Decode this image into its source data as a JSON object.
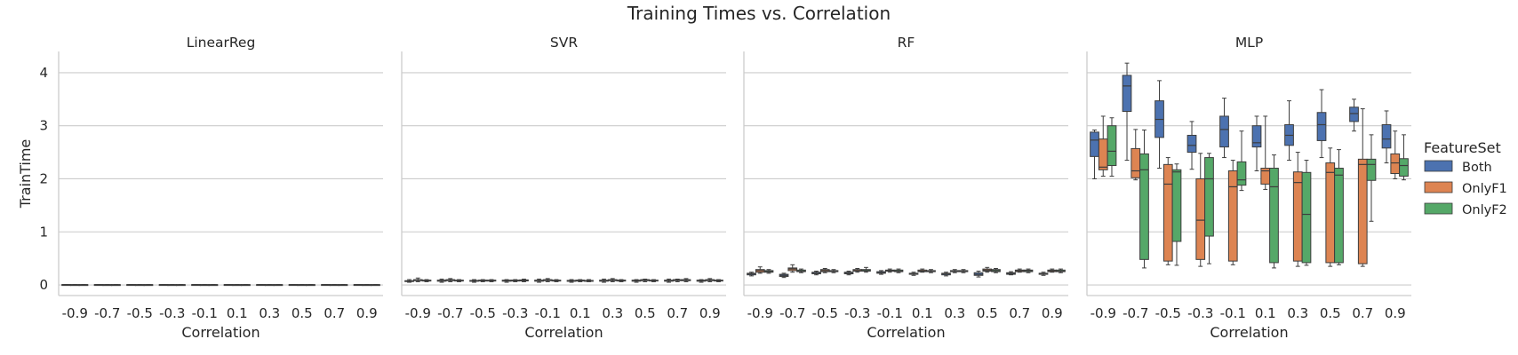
{
  "chart_data": {
    "type": "box",
    "title": "Training Times vs. Correlation",
    "xlabel": "Correlation",
    "ylabel": "TrainTime",
    "ylim": [
      -0.2,
      4.4
    ],
    "yticks": [
      0,
      1,
      2,
      3,
      4
    ],
    "categories": [
      "-0.9",
      "-0.7",
      "-0.5",
      "-0.3",
      "-0.1",
      "0.1",
      "0.3",
      "0.5",
      "0.7",
      "0.9"
    ],
    "legend": {
      "title": "FeatureSet",
      "placement": "right",
      "entries": [
        "Both",
        "OnlyF1",
        "OnlyF2"
      ]
    },
    "colors": {
      "Both": "#4c72b0",
      "OnlyF1": "#dd8452",
      "OnlyF2": "#55a868"
    },
    "grid": "horizontal",
    "note": "each box: [whisker_low, q1, median, q3, whisker_high]",
    "panels": [
      {
        "title": "LinearReg",
        "series": [
          {
            "name": "Both",
            "boxes": [
              [
                0.004,
                0.005,
                0.006,
                0.007,
                0.008
              ],
              [
                0.004,
                0.005,
                0.006,
                0.007,
                0.008
              ],
              [
                0.004,
                0.005,
                0.006,
                0.007,
                0.008
              ],
              [
                0.004,
                0.005,
                0.006,
                0.007,
                0.008
              ],
              [
                0.004,
                0.005,
                0.006,
                0.007,
                0.008
              ],
              [
                0.004,
                0.005,
                0.006,
                0.007,
                0.008
              ],
              [
                0.004,
                0.005,
                0.006,
                0.007,
                0.008
              ],
              [
                0.004,
                0.005,
                0.006,
                0.007,
                0.008
              ],
              [
                0.004,
                0.005,
                0.006,
                0.007,
                0.008
              ],
              [
                0.004,
                0.005,
                0.006,
                0.007,
                0.008
              ]
            ]
          },
          {
            "name": "OnlyF1",
            "boxes": [
              [
                0.003,
                0.004,
                0.005,
                0.006,
                0.007
              ],
              [
                0.003,
                0.004,
                0.005,
                0.006,
                0.007
              ],
              [
                0.003,
                0.004,
                0.005,
                0.006,
                0.007
              ],
              [
                0.003,
                0.004,
                0.005,
                0.006,
                0.007
              ],
              [
                0.003,
                0.004,
                0.005,
                0.006,
                0.007
              ],
              [
                0.003,
                0.004,
                0.005,
                0.006,
                0.007
              ],
              [
                0.003,
                0.004,
                0.005,
                0.006,
                0.007
              ],
              [
                0.003,
                0.004,
                0.005,
                0.006,
                0.007
              ],
              [
                0.003,
                0.004,
                0.005,
                0.006,
                0.007
              ],
              [
                0.003,
                0.004,
                0.005,
                0.006,
                0.007
              ]
            ]
          },
          {
            "name": "OnlyF2",
            "boxes": [
              [
                0.003,
                0.004,
                0.005,
                0.006,
                0.007
              ],
              [
                0.003,
                0.004,
                0.005,
                0.006,
                0.007
              ],
              [
                0.003,
                0.004,
                0.005,
                0.006,
                0.007
              ],
              [
                0.003,
                0.004,
                0.005,
                0.006,
                0.007
              ],
              [
                0.003,
                0.004,
                0.005,
                0.006,
                0.007
              ],
              [
                0.003,
                0.004,
                0.005,
                0.006,
                0.007
              ],
              [
                0.003,
                0.004,
                0.005,
                0.006,
                0.007
              ],
              [
                0.003,
                0.004,
                0.005,
                0.006,
                0.007
              ],
              [
                0.003,
                0.004,
                0.005,
                0.006,
                0.007
              ],
              [
                0.003,
                0.004,
                0.005,
                0.006,
                0.007
              ]
            ]
          }
        ]
      },
      {
        "title": "SVR",
        "series": [
          {
            "name": "Both",
            "boxes": [
              [
                0.05,
                0.07,
                0.075,
                0.08,
                0.1
              ],
              [
                0.05,
                0.07,
                0.08,
                0.09,
                0.11
              ],
              [
                0.05,
                0.07,
                0.08,
                0.085,
                0.1
              ],
              [
                0.05,
                0.07,
                0.08,
                0.09,
                0.1
              ],
              [
                0.05,
                0.07,
                0.08,
                0.09,
                0.11
              ],
              [
                0.05,
                0.07,
                0.08,
                0.085,
                0.1
              ],
              [
                0.05,
                0.07,
                0.08,
                0.09,
                0.11
              ],
              [
                0.05,
                0.07,
                0.08,
                0.09,
                0.1
              ],
              [
                0.05,
                0.07,
                0.08,
                0.09,
                0.11
              ],
              [
                0.05,
                0.07,
                0.08,
                0.09,
                0.1
              ]
            ]
          },
          {
            "name": "OnlyF1",
            "boxes": [
              [
                0.06,
                0.08,
                0.09,
                0.1,
                0.13
              ],
              [
                0.06,
                0.08,
                0.09,
                0.1,
                0.12
              ],
              [
                0.06,
                0.08,
                0.085,
                0.09,
                0.1
              ],
              [
                0.06,
                0.08,
                0.085,
                0.09,
                0.1
              ],
              [
                0.06,
                0.08,
                0.09,
                0.1,
                0.12
              ],
              [
                0.06,
                0.08,
                0.085,
                0.09,
                0.1
              ],
              [
                0.06,
                0.08,
                0.09,
                0.1,
                0.12
              ],
              [
                0.06,
                0.08,
                0.09,
                0.1,
                0.11
              ],
              [
                0.06,
                0.08,
                0.09,
                0.1,
                0.11
              ],
              [
                0.06,
                0.08,
                0.09,
                0.1,
                0.12
              ]
            ]
          },
          {
            "name": "OnlyF2",
            "boxes": [
              [
                0.06,
                0.075,
                0.08,
                0.09,
                0.1
              ],
              [
                0.06,
                0.075,
                0.08,
                0.09,
                0.1
              ],
              [
                0.06,
                0.075,
                0.08,
                0.09,
                0.1
              ],
              [
                0.06,
                0.075,
                0.085,
                0.095,
                0.11
              ],
              [
                0.06,
                0.075,
                0.08,
                0.09,
                0.1
              ],
              [
                0.06,
                0.075,
                0.08,
                0.085,
                0.1
              ],
              [
                0.06,
                0.075,
                0.085,
                0.09,
                0.1
              ],
              [
                0.06,
                0.075,
                0.08,
                0.09,
                0.1
              ],
              [
                0.06,
                0.08,
                0.09,
                0.1,
                0.12
              ],
              [
                0.06,
                0.075,
                0.085,
                0.09,
                0.1
              ]
            ]
          }
        ]
      },
      {
        "title": "RF",
        "series": [
          {
            "name": "Both",
            "boxes": [
              [
                0.17,
                0.19,
                0.21,
                0.22,
                0.24
              ],
              [
                0.14,
                0.16,
                0.18,
                0.2,
                0.22
              ],
              [
                0.19,
                0.21,
                0.22,
                0.24,
                0.26
              ],
              [
                0.19,
                0.21,
                0.23,
                0.24,
                0.26
              ],
              [
                0.2,
                0.22,
                0.23,
                0.25,
                0.27
              ],
              [
                0.18,
                0.2,
                0.21,
                0.22,
                0.24
              ],
              [
                0.17,
                0.19,
                0.21,
                0.22,
                0.24
              ],
              [
                0.15,
                0.18,
                0.2,
                0.23,
                0.26
              ],
              [
                0.19,
                0.2,
                0.22,
                0.23,
                0.25
              ],
              [
                0.18,
                0.2,
                0.21,
                0.22,
                0.24
              ]
            ]
          },
          {
            "name": "OnlyF1",
            "boxes": [
              [
                0.22,
                0.24,
                0.27,
                0.29,
                0.34
              ],
              [
                0.24,
                0.27,
                0.3,
                0.32,
                0.38
              ],
              [
                0.23,
                0.25,
                0.27,
                0.29,
                0.31
              ],
              [
                0.24,
                0.26,
                0.27,
                0.29,
                0.31
              ],
              [
                0.24,
                0.26,
                0.27,
                0.28,
                0.3
              ],
              [
                0.24,
                0.25,
                0.26,
                0.28,
                0.3
              ],
              [
                0.23,
                0.25,
                0.26,
                0.27,
                0.29
              ],
              [
                0.24,
                0.26,
                0.28,
                0.3,
                0.33
              ],
              [
                0.24,
                0.25,
                0.27,
                0.28,
                0.3
              ],
              [
                0.24,
                0.25,
                0.27,
                0.28,
                0.3
              ]
            ]
          },
          {
            "name": "OnlyF2",
            "boxes": [
              [
                0.22,
                0.24,
                0.25,
                0.27,
                0.29
              ],
              [
                0.23,
                0.25,
                0.26,
                0.28,
                0.3
              ],
              [
                0.23,
                0.25,
                0.26,
                0.27,
                0.29
              ],
              [
                0.24,
                0.26,
                0.27,
                0.29,
                0.33
              ],
              [
                0.23,
                0.25,
                0.26,
                0.28,
                0.3
              ],
              [
                0.23,
                0.25,
                0.26,
                0.27,
                0.29
              ],
              [
                0.23,
                0.25,
                0.26,
                0.27,
                0.29
              ],
              [
                0.23,
                0.25,
                0.27,
                0.29,
                0.31
              ],
              [
                0.23,
                0.25,
                0.27,
                0.28,
                0.3
              ],
              [
                0.23,
                0.25,
                0.26,
                0.28,
                0.3
              ]
            ]
          }
        ]
      },
      {
        "title": "MLP",
        "series": [
          {
            "name": "Both",
            "boxes": [
              [
                2.0,
                2.42,
                2.73,
                2.88,
                2.92
              ],
              [
                2.35,
                3.27,
                3.75,
                3.95,
                4.18
              ],
              [
                2.2,
                2.78,
                3.12,
                3.47,
                3.85
              ],
              [
                2.18,
                2.5,
                2.63,
                2.82,
                3.08
              ],
              [
                2.4,
                2.6,
                2.93,
                3.18,
                3.52
              ],
              [
                2.15,
                2.6,
                2.68,
                3.0,
                3.18
              ],
              [
                2.35,
                2.63,
                2.82,
                3.02,
                3.47
              ],
              [
                2.4,
                2.72,
                3.02,
                3.25,
                3.68
              ],
              [
                2.9,
                3.08,
                3.23,
                3.35,
                3.5
              ],
              [
                2.3,
                2.58,
                2.75,
                3.02,
                3.28
              ]
            ]
          },
          {
            "name": "OnlyF1",
            "boxes": [
              [
                2.05,
                2.17,
                2.22,
                2.75,
                3.18
              ],
              [
                1.98,
                2.02,
                2.15,
                2.57,
                2.93
              ],
              [
                0.38,
                0.45,
                1.9,
                2.27,
                2.4
              ],
              [
                0.35,
                0.48,
                1.22,
                2.0,
                2.48
              ],
              [
                0.38,
                0.45,
                1.85,
                2.15,
                2.35
              ],
              [
                1.8,
                1.9,
                2.15,
                2.2,
                3.18
              ],
              [
                0.35,
                0.45,
                1.93,
                2.13,
                2.5
              ],
              [
                0.35,
                0.42,
                2.12,
                2.3,
                2.58
              ],
              [
                0.35,
                0.4,
                2.27,
                2.37,
                3.32
              ],
              [
                2.0,
                2.1,
                2.3,
                2.47,
                2.9
              ]
            ]
          },
          {
            "name": "OnlyF2",
            "boxes": [
              [
                2.05,
                2.25,
                2.52,
                3.0,
                3.15
              ],
              [
                0.32,
                0.48,
                2.17,
                2.47,
                2.92
              ],
              [
                0.37,
                0.82,
                2.13,
                2.17,
                2.28
              ],
              [
                0.4,
                0.92,
                2.0,
                2.4,
                2.48
              ],
              [
                1.78,
                1.88,
                1.98,
                2.32,
                2.9
              ],
              [
                0.32,
                0.42,
                1.85,
                2.2,
                2.45
              ],
              [
                0.37,
                0.42,
                1.33,
                2.12,
                2.35
              ],
              [
                0.38,
                0.42,
                2.07,
                2.2,
                2.55
              ],
              [
                1.2,
                1.97,
                2.27,
                2.37,
                2.83
              ],
              [
                1.98,
                2.05,
                2.25,
                2.38,
                2.83
              ]
            ]
          }
        ]
      }
    ]
  }
}
